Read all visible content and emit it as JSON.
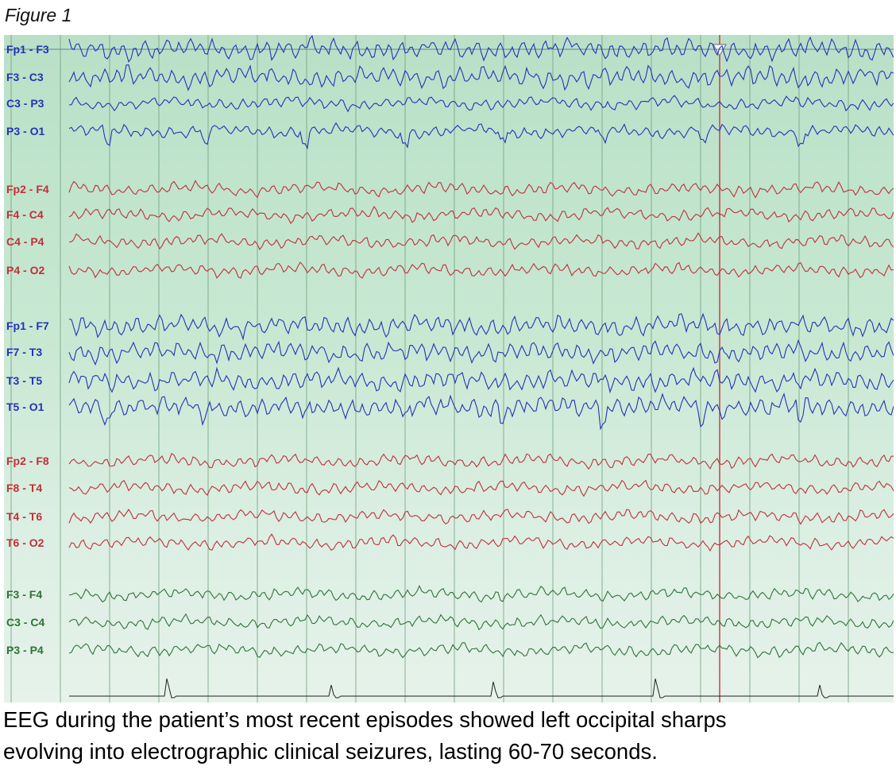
{
  "header": {
    "title": "Figure 1"
  },
  "eeg": {
    "channels": [
      {
        "label": "Fp1 - F3"
      },
      {
        "label": "F3 - C3"
      },
      {
        "label": "C3 - P3"
      },
      {
        "label": "P3 - O1"
      },
      {
        "label": "Fp2 - F4"
      },
      {
        "label": "F4 - C4"
      },
      {
        "label": "C4 - P4"
      },
      {
        "label": "P4 - O2"
      },
      {
        "label": "Fp1 - F7"
      },
      {
        "label": "F7 - T3"
      },
      {
        "label": "T3 - T5"
      },
      {
        "label": "T5 - O1"
      },
      {
        "label": "Fp2 - F8"
      },
      {
        "label": "F8 - T4"
      },
      {
        "label": "T4 - T6"
      },
      {
        "label": "T6 - O2"
      },
      {
        "label": "F3 - F4"
      },
      {
        "label": "C3 - C4"
      },
      {
        "label": "P3 - P4"
      }
    ]
  },
  "caption": {
    "lines": [
      "EEG during the patient’s most recent episodes showed left occipital sharps",
      "evolving into electrographic clinical seizures, lasting 60-70 seconds."
    ]
  }
}
